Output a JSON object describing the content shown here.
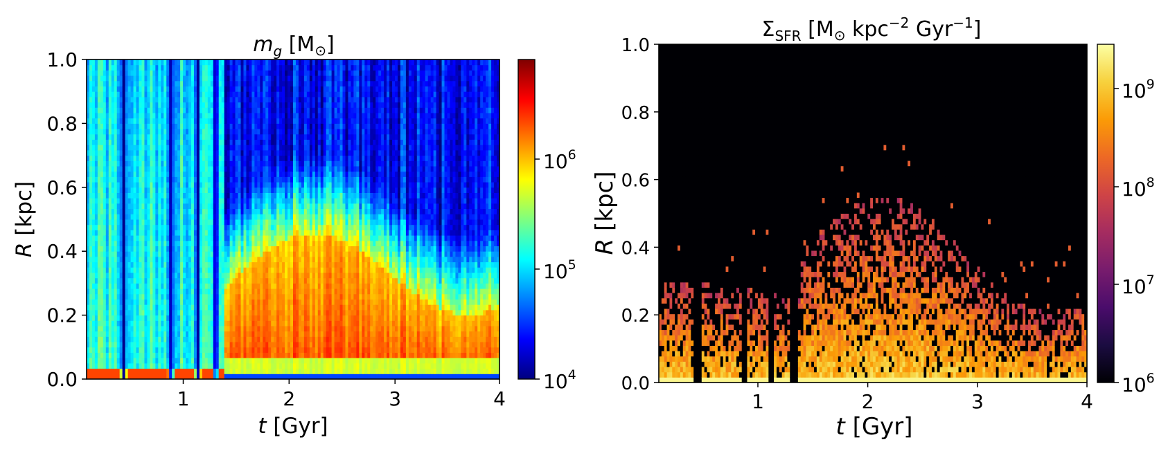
{
  "chart_data": [
    {
      "type": "heatmap",
      "title": "m_g [M_⊙]",
      "title_parts": {
        "main": "m",
        "sub": "g",
        "unit": " [M",
        "sun": "⊙",
        "close": "]"
      },
      "xlabel": "t [Gyr]",
      "xlabel_parts": {
        "var": "t",
        "unit": " [Gyr]"
      },
      "ylabel": "R [kpc]",
      "ylabel_parts": {
        "var": "R",
        "unit": " [kpc]"
      },
      "xlim": [
        0.1,
        4.0
      ],
      "ylim": [
        0.0,
        1.0
      ],
      "xticks": [
        1,
        2,
        3,
        4
      ],
      "xtick_labels": [
        "1",
        "2",
        "3",
        "4"
      ],
      "yticks": [
        0.0,
        0.2,
        0.4,
        0.6,
        0.8,
        1.0
      ],
      "ytick_labels": [
        "0.0",
        "0.2",
        "0.4",
        "0.6",
        "0.8",
        "1.0"
      ],
      "colormap": "jet",
      "color_scale": "log",
      "clim": [
        10000,
        7000000
      ],
      "colorbar_ticks": [
        10000,
        100000,
        1000000
      ],
      "colorbar_labels": [
        {
          "base": "10",
          "exp": "4"
        },
        {
          "base": "10",
          "exp": "5"
        },
        {
          "base": "10",
          "exp": "6"
        }
      ],
      "features": {
        "gas_gaps_gyr": [
          0.45,
          0.9,
          1.15,
          1.32
        ],
        "dense_core_radius_kpc_late": [
          0.05,
          0.4
        ],
        "peak_log_density": 6.6,
        "background_log_density_outer_late": 4.2
      }
    },
    {
      "type": "heatmap",
      "title": "Σ_SFR [M_⊙ kpc^-2 Gyr^-1]",
      "title_parts": {
        "main": "Σ",
        "sub": "SFR",
        "unit1": " [M",
        "sun": "⊙",
        "unit2": "  kpc",
        "exp1": "−2",
        "unit3": " Gyr",
        "exp2": "−1",
        "close": "]"
      },
      "xlabel": "t [Gyr]",
      "xlabel_parts": {
        "var": "t",
        "unit": " [Gyr]"
      },
      "ylabel": "R [kpc]",
      "ylabel_parts": {
        "var": "R",
        "unit": " [kpc]"
      },
      "xlim": [
        0.1,
        4.0
      ],
      "ylim": [
        0.0,
        1.0
      ],
      "xticks": [
        1,
        2,
        3,
        4
      ],
      "xtick_labels": [
        "1",
        "2",
        "3",
        "4"
      ],
      "yticks": [
        0.0,
        0.2,
        0.4,
        0.6,
        0.8,
        1.0
      ],
      "ytick_labels": [
        "0.0",
        "0.2",
        "0.4",
        "0.6",
        "0.8",
        "1.0"
      ],
      "colormap": "inferno",
      "color_scale": "log",
      "clim": [
        1000000,
        3000000000
      ],
      "colorbar_ticks": [
        1000000,
        10000000,
        100000000,
        1000000000
      ],
      "colorbar_labels": [
        {
          "base": "10",
          "exp": "6"
        },
        {
          "base": "10",
          "exp": "7"
        },
        {
          "base": "10",
          "exp": "8"
        },
        {
          "base": "10",
          "exp": "9"
        }
      ],
      "features": {
        "quenched_gaps_gyr": [
          0.45,
          0.88,
          1.13,
          1.33
        ],
        "sf_region_radius_kpc_late": [
          0.05,
          0.5
        ],
        "peak_log_sfr": 9.4
      }
    }
  ],
  "colors": {
    "jet": [
      "#00007f",
      "#0000ff",
      "#007fff",
      "#00ffff",
      "#7fff7f",
      "#ffff00",
      "#ff7f00",
      "#ff0000",
      "#7f0000"
    ],
    "inferno": [
      "#000004",
      "#1b0c41",
      "#4a0c6b",
      "#781c6d",
      "#a52c60",
      "#cf4446",
      "#ed6925",
      "#fb9b06",
      "#f7d13d",
      "#fcffa4"
    ]
  }
}
